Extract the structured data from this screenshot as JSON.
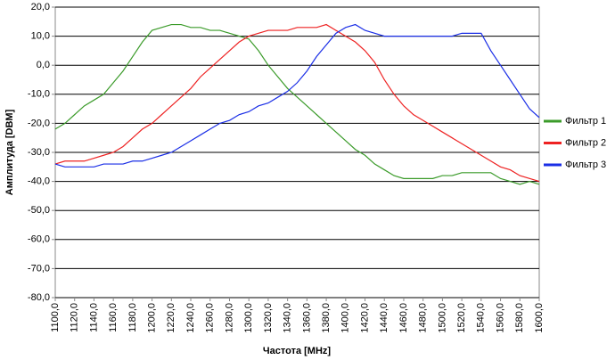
{
  "chart_data": {
    "type": "line",
    "x_label": "Частота [MHz]",
    "y_label": "Амплитуда [DBM]",
    "grid": true,
    "legend": "right",
    "xlim": [
      1100,
      1600
    ],
    "ylim": [
      -80,
      20
    ],
    "xticks": [
      {
        "value": 1100,
        "label": "1100,0"
      },
      {
        "value": 1120,
        "label": "1120,0"
      },
      {
        "value": 1140,
        "label": "1140,0"
      },
      {
        "value": 1160,
        "label": "1160,0"
      },
      {
        "value": 1180,
        "label": "1180,0"
      },
      {
        "value": 1200,
        "label": "1200,0"
      },
      {
        "value": 1220,
        "label": "1220,0"
      },
      {
        "value": 1240,
        "label": "1240,0"
      },
      {
        "value": 1260,
        "label": "1260,0"
      },
      {
        "value": 1280,
        "label": "1280,0"
      },
      {
        "value": 1300,
        "label": "1300,0"
      },
      {
        "value": 1320,
        "label": "1320,0"
      },
      {
        "value": 1340,
        "label": "1340,0"
      },
      {
        "value": 1360,
        "label": "1360,0"
      },
      {
        "value": 1380,
        "label": "1380,0"
      },
      {
        "value": 1400,
        "label": "1400,0"
      },
      {
        "value": 1420,
        "label": "1420,0"
      },
      {
        "value": 1440,
        "label": "1440,0"
      },
      {
        "value": 1460,
        "label": "1460,0"
      },
      {
        "value": 1480,
        "label": "1480,0"
      },
      {
        "value": 1500,
        "label": "1500,0"
      },
      {
        "value": 1520,
        "label": "1520,0"
      },
      {
        "value": 1540,
        "label": "1540,0"
      },
      {
        "value": 1560,
        "label": "1560,0"
      },
      {
        "value": 1580,
        "label": "1580,0"
      },
      {
        "value": 1600,
        "label": "1600,0"
      }
    ],
    "yticks": [
      {
        "value": 20,
        "label": "20,0"
      },
      {
        "value": 10,
        "label": "10,0"
      },
      {
        "value": 0,
        "label": "0,0"
      },
      {
        "value": -10,
        "label": "-10,0"
      },
      {
        "value": -20,
        "label": "-20,0"
      },
      {
        "value": -30,
        "label": "-30,0"
      },
      {
        "value": -40,
        "label": "-40,0"
      },
      {
        "value": -50,
        "label": "-50,0"
      },
      {
        "value": -60,
        "label": "-60,0"
      },
      {
        "value": -70,
        "label": "-70,0"
      },
      {
        "value": -80,
        "label": "-80,0"
      }
    ],
    "x": [
      1100,
      1110,
      1120,
      1130,
      1140,
      1150,
      1160,
      1170,
      1180,
      1190,
      1200,
      1210,
      1220,
      1230,
      1240,
      1250,
      1260,
      1270,
      1280,
      1290,
      1300,
      1310,
      1320,
      1330,
      1340,
      1350,
      1360,
      1370,
      1380,
      1390,
      1400,
      1410,
      1420,
      1430,
      1440,
      1450,
      1460,
      1470,
      1480,
      1490,
      1500,
      1510,
      1520,
      1530,
      1540,
      1550,
      1560,
      1570,
      1580,
      1590,
      1600
    ],
    "series": [
      {
        "name": "Фильтр 1",
        "color": "#3b9b2a",
        "values": [
          -22,
          -20,
          -17,
          -14,
          -12,
          -10,
          -6,
          -2,
          3,
          8,
          12,
          13,
          14,
          14,
          13,
          13,
          12,
          12,
          11,
          10,
          9,
          5,
          0,
          -4,
          -8,
          -11,
          -14,
          -17,
          -20,
          -23,
          -26,
          -29,
          -31,
          -34,
          -36,
          -38,
          -39,
          -39,
          -39,
          -39,
          -38,
          -38,
          -37,
          -37,
          -37,
          -37,
          -39,
          -40,
          -41,
          -40,
          -41
        ]
      },
      {
        "name": "Фильтр 2",
        "color": "#ee2222",
        "values": [
          -34,
          -33,
          -33,
          -33,
          -32,
          -31,
          -30,
          -28,
          -25,
          -22,
          -20,
          -17,
          -14,
          -11,
          -8,
          -4,
          -1,
          2,
          5,
          8,
          10,
          11,
          12,
          12,
          12,
          13,
          13,
          13,
          14,
          12,
          10,
          8,
          5,
          1,
          -5,
          -10,
          -14,
          -17,
          -19,
          -21,
          -23,
          -25,
          -27,
          -29,
          -31,
          -33,
          -35,
          -36,
          -38,
          -39,
          -40
        ]
      },
      {
        "name": "Фильтр 3",
        "color": "#1a2ee6",
        "values": [
          -34,
          -35,
          -35,
          -35,
          -35,
          -34,
          -34,
          -34,
          -33,
          -33,
          -32,
          -31,
          -30,
          -28,
          -26,
          -24,
          -22,
          -20,
          -19,
          -17,
          -16,
          -14,
          -13,
          -11,
          -9,
          -6,
          -2,
          3,
          7,
          11,
          13,
          14,
          12,
          11,
          10,
          10,
          10,
          10,
          10,
          10,
          10,
          10,
          11,
          11,
          11,
          5,
          0,
          -5,
          -10,
          -15,
          -18
        ]
      }
    ]
  }
}
